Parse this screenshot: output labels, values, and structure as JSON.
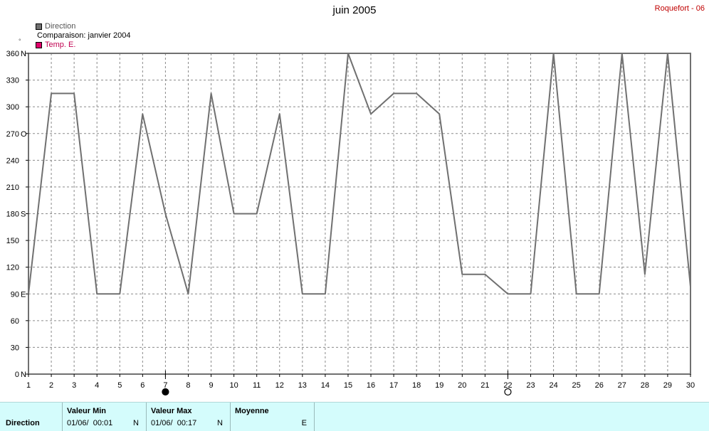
{
  "title": "juin 2005",
  "station": "Roquefort - 06",
  "legend": {
    "direction": "Direction",
    "comparison": "Comparaison: janvier 2004",
    "temp": "Temp. E.",
    "direction_color": "#707070",
    "temp_color": "#e0006a",
    "tiny_mark": "°"
  },
  "footer": {
    "row_label": "Direction",
    "min_header": "Valeur Min",
    "min_value": "01/06/  00:01",
    "min_unit": "N",
    "max_header": "Valeur Max",
    "max_value": "01/06/  00:17",
    "max_unit": "N",
    "avg_header": "Moyenne",
    "avg_unit": "E"
  },
  "chart_data": {
    "type": "line",
    "title": "juin 2005",
    "xlim": [
      1,
      30
    ],
    "ylim": [
      0,
      360
    ],
    "x_ticks": [
      1,
      2,
      3,
      4,
      5,
      6,
      7,
      8,
      9,
      10,
      11,
      12,
      13,
      14,
      15,
      16,
      17,
      18,
      19,
      20,
      21,
      22,
      23,
      24,
      25,
      26,
      27,
      28,
      29,
      30
    ],
    "y_ticks": [
      {
        "value": 0,
        "label": "0",
        "dir": "N"
      },
      {
        "value": 30,
        "label": "30",
        "dir": ""
      },
      {
        "value": 60,
        "label": "60",
        "dir": ""
      },
      {
        "value": 90,
        "label": "90",
        "dir": "E"
      },
      {
        "value": 120,
        "label": "120",
        "dir": ""
      },
      {
        "value": 150,
        "label": "150",
        "dir": ""
      },
      {
        "value": 180,
        "label": "180",
        "dir": "S"
      },
      {
        "value": 210,
        "label": "210",
        "dir": ""
      },
      {
        "value": 240,
        "label": "240",
        "dir": ""
      },
      {
        "value": 270,
        "label": "270",
        "dir": "O"
      },
      {
        "value": 300,
        "label": "300",
        "dir": ""
      },
      {
        "value": 330,
        "label": "330",
        "dir": ""
      },
      {
        "value": 360,
        "label": "360",
        "dir": "N"
      }
    ],
    "grid": true,
    "series": [
      {
        "color": "#707070",
        "points": [
          [
            1,
            90
          ],
          [
            2,
            315
          ],
          [
            3,
            315
          ],
          [
            4,
            90
          ],
          [
            5,
            90
          ],
          [
            6,
            292
          ],
          [
            7,
            180
          ],
          [
            8,
            90
          ],
          [
            9,
            315
          ],
          [
            10,
            180
          ],
          [
            11,
            180
          ],
          [
            12,
            292
          ],
          [
            13,
            90
          ],
          [
            14,
            90
          ],
          [
            15,
            360
          ],
          [
            16,
            292
          ],
          [
            17,
            315
          ],
          [
            18,
            315
          ],
          [
            19,
            292
          ],
          [
            20,
            112
          ],
          [
            21,
            112
          ],
          [
            22,
            90
          ],
          [
            23,
            90
          ],
          [
            24,
            360
          ],
          [
            25,
            90
          ],
          [
            26,
            90
          ],
          [
            27,
            360
          ],
          [
            28,
            112
          ],
          [
            29,
            360
          ],
          [
            30,
            98
          ]
        ]
      }
    ],
    "moon_markers": [
      {
        "day": 7,
        "phase": "full"
      },
      {
        "day": 22,
        "phase": "new"
      }
    ]
  }
}
